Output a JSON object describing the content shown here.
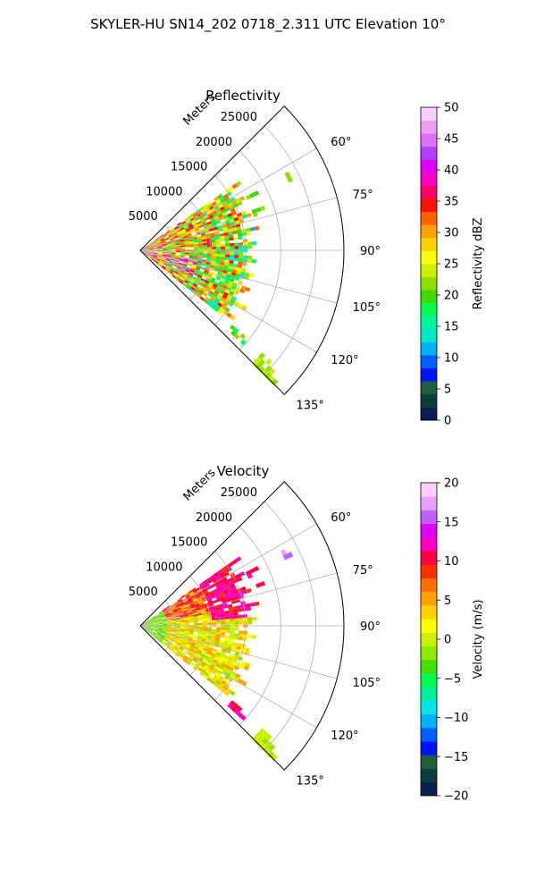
{
  "figure": {
    "title": "SKYLER-HU  SN14_202  0718_2.311 UTC Elevation 10°"
  },
  "chart_data": [
    {
      "type": "heatmap",
      "subtype": "polar-sector",
      "title": "Reflectivity",
      "range_label": "Meters",
      "range_ticks": [
        "5000",
        "10000",
        "15000",
        "20000",
        "25000"
      ],
      "range_values": [
        5000,
        10000,
        15000,
        20000,
        25000
      ],
      "r_max": 29000,
      "azimuth_ticks": [
        "60°",
        "75°",
        "90°",
        "105°",
        "120°",
        "135°"
      ],
      "azimuth_values": [
        60,
        75,
        90,
        105,
        120,
        135
      ],
      "azimuth_range": [
        45,
        135
      ],
      "grid": true,
      "colorbar": {
        "label": "Reflectivity dBZ",
        "ticks": [
          "0",
          "5",
          "10",
          "15",
          "20",
          "25",
          "30",
          "35",
          "40",
          "45",
          "50"
        ],
        "vmin": 0,
        "vmax": 50,
        "colors": [
          "#081f54",
          "#0b3d3a",
          "#1c5f3a",
          "#0014ff",
          "#0060ff",
          "#00b0ff",
          "#00e6c8",
          "#00f59a",
          "#00ff50",
          "#40d800",
          "#8fe000",
          "#c8f000",
          "#ffff00",
          "#ffd200",
          "#ffa000",
          "#ff6000",
          "#ff1000",
          "#ff0060",
          "#ff00c0",
          "#e000ff",
          "#b040ff",
          "#e070ff",
          "#f0a0f0",
          "#f8d0f8"
        ]
      }
    },
    {
      "type": "heatmap",
      "subtype": "polar-sector",
      "title": "Velocity",
      "range_label": "Meters",
      "range_ticks": [
        "5000",
        "10000",
        "15000",
        "20000",
        "25000"
      ],
      "range_values": [
        5000,
        10000,
        15000,
        20000,
        25000
      ],
      "r_max": 29000,
      "azimuth_ticks": [
        "60°",
        "75°",
        "90°",
        "105°",
        "120°",
        "135°"
      ],
      "azimuth_values": [
        60,
        75,
        90,
        105,
        120,
        135
      ],
      "azimuth_range": [
        45,
        135
      ],
      "grid": true,
      "colorbar": {
        "label": "Velocity (m/s)",
        "ticks": [
          "−20",
          "−15",
          "−10",
          "−5",
          "0",
          "5",
          "10",
          "15",
          "20"
        ],
        "vmin": -20,
        "vmax": 20,
        "colors": [
          "#081f54",
          "#0b3d3a",
          "#1c5f3a",
          "#0014ff",
          "#0060ff",
          "#00b0ff",
          "#00e6e6",
          "#00f0a0",
          "#00ff50",
          "#40e000",
          "#8fe800",
          "#c8f000",
          "#ffff00",
          "#ffd200",
          "#ffa000",
          "#ff7000",
          "#ff3000",
          "#ff0040",
          "#ff00c0",
          "#e000ff",
          "#c060ff",
          "#e8a0ff",
          "#f8d0f8"
        ]
      }
    }
  ]
}
